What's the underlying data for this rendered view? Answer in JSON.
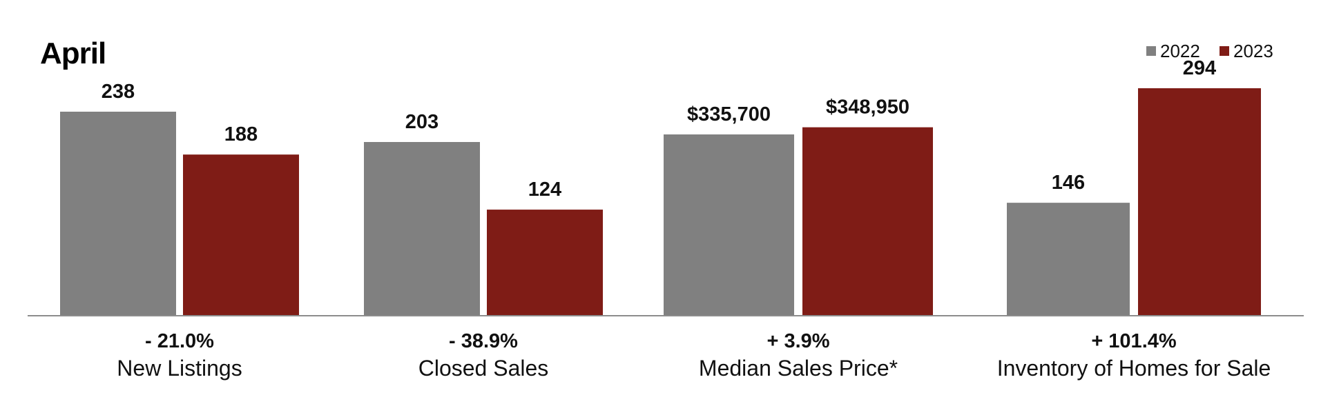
{
  "chart_data": {
    "type": "bar",
    "title": "April",
    "categories": [
      "New Listings",
      "Closed Sales",
      "Median Sales Price*",
      "Inventory of Homes for Sale"
    ],
    "changes": [
      "- 21.0%",
      "- 38.9%",
      "+ 3.9%",
      "+ 101.4%"
    ],
    "series": [
      {
        "name": "2022",
        "color": "#808080",
        "values": [
          238,
          203,
          335700,
          146
        ],
        "labels": [
          "238",
          "203",
          "$335,700",
          "146"
        ]
      },
      {
        "name": "2023",
        "color": "#7f1c16",
        "values": [
          188,
          124,
          348950,
          294
        ],
        "labels": [
          "188",
          "124",
          "$348,950",
          "294"
        ]
      }
    ],
    "legend_position": "top-right",
    "grid": false,
    "note": "Each category is scaled independently (per-panel axes, no axis shown)."
  }
}
